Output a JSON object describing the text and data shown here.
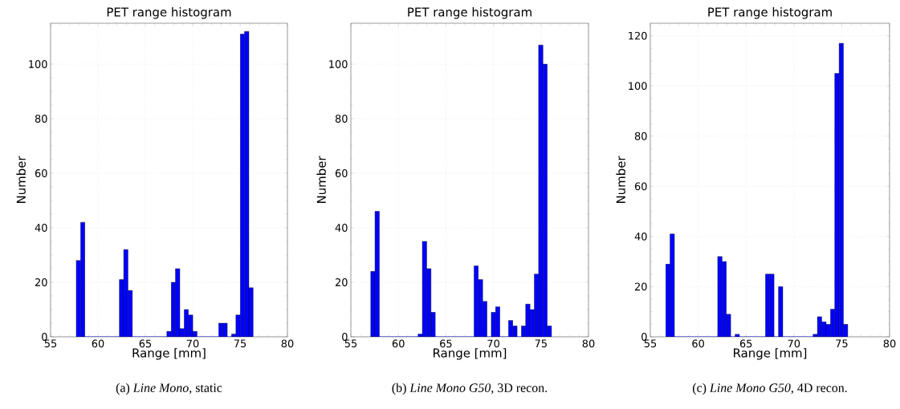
{
  "chart_data": [
    {
      "type": "histogram",
      "title": "PET range histogram",
      "xlabel": "Range [mm]",
      "ylabel": "Number",
      "color": "#0000ff",
      "grid": true,
      "bins": [
        57.71,
        58.17,
        58.62,
        59.08,
        59.53,
        59.99,
        60.44,
        60.9,
        61.35,
        61.81,
        62.26,
        62.72,
        63.17,
        63.63,
        64.09,
        64.54,
        65.0,
        65.45,
        65.91,
        66.36,
        66.82,
        67.27,
        67.73,
        68.18,
        68.64,
        69.1,
        69.55,
        70.01,
        70.46,
        70.92,
        71.37,
        71.83,
        72.28,
        72.74,
        73.19,
        73.65,
        74.1,
        74.56,
        75.02,
        75.47,
        75.93,
        76.38
      ],
      "values": [
        28,
        42,
        0,
        0,
        0,
        0,
        0,
        0,
        0,
        0,
        21,
        32,
        17,
        0,
        0,
        0,
        0,
        0,
        0,
        0,
        0,
        2,
        20,
        25,
        3,
        10,
        8,
        2,
        0,
        0,
        0,
        0,
        0,
        5,
        5,
        0,
        1,
        8,
        111,
        112,
        18
      ],
      "xlim": [
        55,
        80
      ],
      "ylim": [
        0,
        115
      ],
      "xticks": [
        55,
        60,
        65,
        70,
        75,
        80
      ],
      "yticks": [
        0,
        20,
        40,
        60,
        80,
        100
      ],
      "annotations": [
        "(a) *Line Mono*, static"
      ]
    },
    {
      "type": "histogram",
      "title": "PET range histogram",
      "xlabel": "Range [mm]",
      "ylabel": "Number",
      "color": "#0000ff",
      "grid": true,
      "bins": [
        57.09,
        57.54,
        58.0,
        58.45,
        58.9,
        59.35,
        59.81,
        60.26,
        60.71,
        61.17,
        61.62,
        62.07,
        62.52,
        62.98,
        63.43,
        63.88,
        64.34,
        64.79,
        65.24,
        65.7,
        66.15,
        66.6,
        67.05,
        67.51,
        67.96,
        68.41,
        68.87,
        69.32,
        69.77,
        70.22,
        70.68,
        71.13,
        71.58,
        72.04,
        72.49,
        72.94,
        73.39,
        73.85,
        74.3,
        74.75,
        75.21,
        75.66,
        76.11
      ],
      "values": [
        24,
        46,
        0,
        0,
        0,
        0,
        0,
        0,
        0,
        0,
        0,
        1,
        35,
        25,
        9,
        0,
        0,
        0,
        0,
        0,
        0,
        0,
        0,
        0,
        26,
        21,
        13,
        0,
        9,
        11,
        0,
        0,
        6,
        4,
        0,
        4,
        12,
        10,
        23,
        107,
        100,
        4
      ],
      "xlim": [
        55,
        80
      ],
      "ylim": [
        0,
        115
      ],
      "xticks": [
        55,
        60,
        65,
        70,
        75,
        80
      ],
      "yticks": [
        0,
        20,
        40,
        60,
        80,
        100
      ],
      "annotations": [
        "(b) *Line Mono G50*, 3D recon."
      ]
    },
    {
      "type": "histogram",
      "title": "PET range histogram",
      "xlabel": "Range [mm]",
      "ylabel": "Number",
      "color": "#0000ff",
      "grid": true,
      "bins": [
        56.61,
        57.06,
        57.52,
        57.97,
        58.42,
        58.87,
        59.33,
        59.78,
        60.23,
        60.69,
        61.14,
        61.59,
        62.04,
        62.5,
        62.95,
        63.4,
        63.86,
        64.31,
        64.76,
        65.22,
        65.67,
        66.12,
        66.57,
        67.03,
        67.48,
        67.93,
        68.39,
        68.84,
        69.29,
        69.74,
        70.2,
        70.65,
        71.1,
        71.56,
        72.01,
        72.46,
        72.91,
        73.37,
        73.82,
        74.27,
        74.73,
        75.18,
        75.63
      ],
      "values": [
        29,
        41,
        0,
        0,
        0,
        0,
        0,
        0,
        0,
        0,
        0,
        0,
        32,
        30,
        9,
        0,
        1,
        0,
        0,
        0,
        0,
        0,
        0,
        25,
        25,
        0,
        20,
        0,
        0,
        0,
        0,
        0,
        0,
        0,
        1,
        8,
        6,
        5,
        11,
        105,
        117,
        5
      ],
      "xlim": [
        55,
        80
      ],
      "ylim": [
        0,
        125
      ],
      "xticks": [
        55,
        60,
        65,
        70,
        75,
        80
      ],
      "yticks": [
        0,
        20,
        40,
        60,
        80,
        100,
        120
      ],
      "annotations": [
        "(c) *Line Mono G50*, 4D recon."
      ]
    }
  ]
}
